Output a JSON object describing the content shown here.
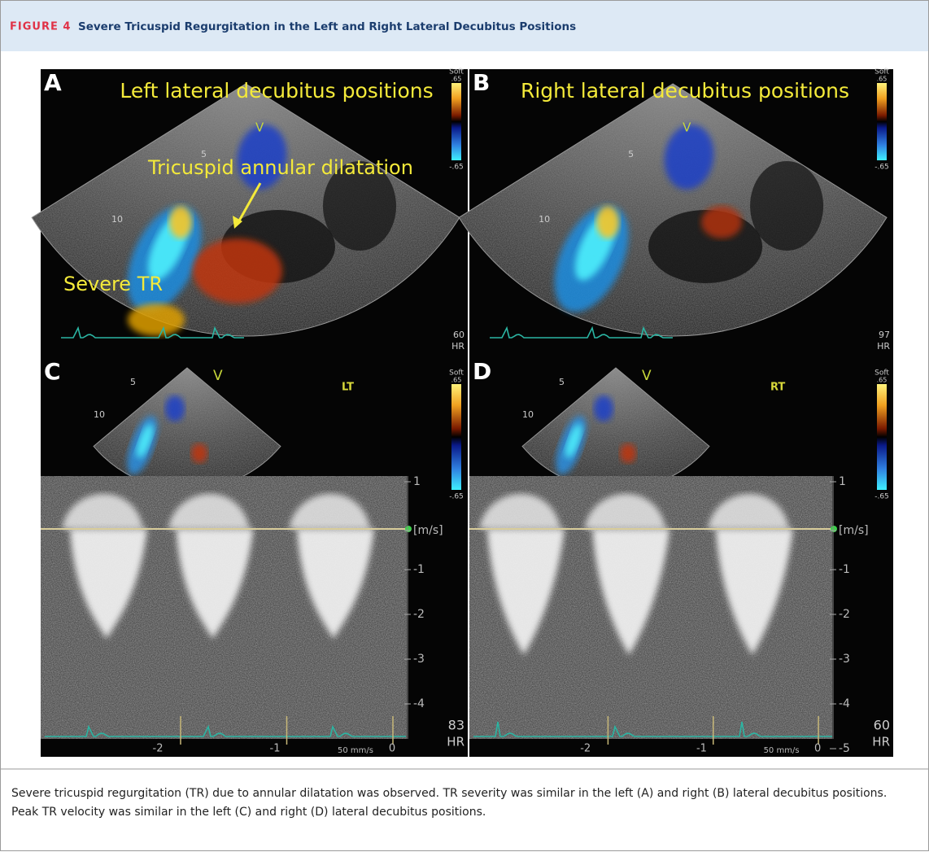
{
  "figure": {
    "label": "FIGURE 4",
    "title": "Severe Tricuspid Regurgitation in the Left and Right Lateral Decubitus Positions"
  },
  "panels": [
    {
      "letter": "A",
      "title": "Left lateral decubitus positions",
      "view": "V",
      "annotations": [
        "Tricuspid annular dilatation",
        "Severe TR"
      ],
      "depth_labels": [
        "5",
        "10"
      ],
      "scale": {
        "top": "Soft",
        "max": ".65",
        "min": "-.65"
      },
      "hr": "60",
      "hr_label": "HR"
    },
    {
      "letter": "B",
      "title": "Right lateral decubitus positions",
      "view": "V",
      "depth_labels": [
        "5",
        "10"
      ],
      "scale": {
        "top": "Soft",
        "max": ".65",
        "min": "-.65"
      },
      "hr": "97",
      "hr_label": "HR"
    },
    {
      "letter": "C",
      "view": "V",
      "mode": "LT",
      "depth_labels": [
        "5",
        "10"
      ],
      "scale": {
        "top": "Soft",
        "max": ".65",
        "min": "-.65"
      },
      "velocity_labels": [
        "1",
        "[m/s]",
        "-1",
        "-2",
        "-3",
        "-4"
      ],
      "time_labels": [
        "-2",
        "-1",
        "0"
      ],
      "sweep": "50 mm/s",
      "hr": "83",
      "hr_label": "HR"
    },
    {
      "letter": "D",
      "view": "V",
      "mode": "RT",
      "depth_labels": [
        "5",
        "10"
      ],
      "scale": {
        "top": "Soft",
        "max": ".65",
        "min": "-.65"
      },
      "velocity_labels": [
        "1",
        "[m/s]",
        "-1",
        "-2",
        "-3",
        "-4",
        "-5"
      ],
      "time_labels": [
        "-2",
        "-1",
        "0"
      ],
      "sweep": "50 mm/s",
      "hr": "60",
      "hr_label": "HR"
    }
  ],
  "caption": "Severe tricuspid regurgitation (TR) due to annular dilatation was observed. TR severity was similar in the left (A) and right (B) lateral decubitus positions. Peak TR velocity was similar in the left (C) and right (D) lateral decubitus positions."
}
